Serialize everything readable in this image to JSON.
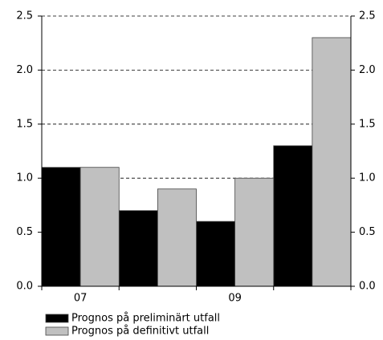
{
  "chart_data": {
    "type": "bar",
    "categories": [
      "07",
      null,
      "09",
      null
    ],
    "series": [
      {
        "name": "Prognos på preliminärt utfall",
        "color": "#000000",
        "values": [
          1.1,
          0.7,
          0.6,
          1.3
        ]
      },
      {
        "name": "Prognos på definitivt utfall",
        "color": "#c0c0c0",
        "values": [
          1.1,
          0.9,
          1.0,
          2.3
        ]
      }
    ],
    "ylim": [
      0,
      2.5
    ],
    "yticks": [
      {
        "value": 0,
        "label": "0.0"
      },
      0.5,
      {
        "value": 1,
        "label": "1.0"
      },
      1.5,
      {
        "value": 2,
        "label": "2.0"
      },
      2.5
    ],
    "y2lim": [
      0,
      2.5
    ],
    "y2ticks": [
      {
        "value": 0,
        "label": "0.0"
      },
      0.5,
      {
        "value": 1,
        "label": "1.0"
      },
      1.5,
      {
        "value": 2,
        "label": "2.0"
      },
      2.5
    ],
    "grid": true,
    "legend": "bottom-left"
  }
}
